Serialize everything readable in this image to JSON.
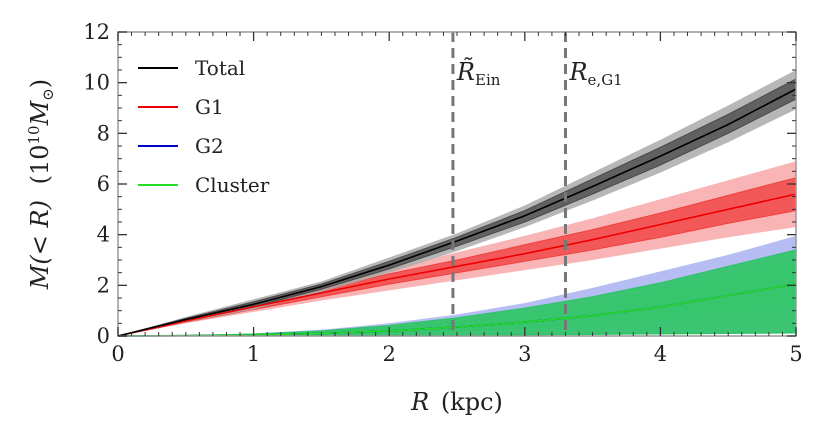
{
  "chart_data": {
    "type": "line",
    "title": "",
    "xlabel": {
      "symbol": "R",
      "unit": "(kpc)"
    },
    "ylabel": {
      "main": "M(< R)",
      "unit": "(10",
      "exp": "10",
      "tail": "M",
      "sub": "⊙",
      "close": ")"
    },
    "xlim": [
      0,
      5
    ],
    "ylim": [
      0,
      12
    ],
    "xticks": [
      0,
      1,
      2,
      3,
      4,
      5
    ],
    "yticks": [
      0,
      2,
      4,
      6,
      8,
      10,
      12
    ],
    "x": [
      0,
      0.5,
      1,
      1.5,
      2,
      2.5,
      3,
      3.5,
      4,
      4.5,
      5
    ],
    "series": [
      {
        "name": "Total",
        "color": "#000000",
        "median": [
          0,
          0.65,
          1.25,
          1.95,
          2.8,
          3.75,
          4.75,
          5.9,
          7.1,
          8.35,
          9.75
        ],
        "band68": [
          [
            0,
            0.6,
            1.15,
            1.85,
            2.65,
            3.55,
            4.5,
            5.6,
            6.75,
            8.0,
            9.35
          ],
          [
            0,
            0.7,
            1.35,
            2.05,
            2.95,
            3.9,
            4.95,
            6.2,
            7.45,
            8.75,
            10.15
          ]
        ],
        "band95": [
          [
            0,
            0.55,
            1.05,
            1.75,
            2.5,
            3.35,
            4.3,
            5.35,
            6.45,
            7.65,
            8.95
          ],
          [
            0,
            0.75,
            1.45,
            2.15,
            3.1,
            4.05,
            5.15,
            6.45,
            7.75,
            9.1,
            10.5
          ]
        ],
        "fill68": "#444444",
        "fill95": "#aaaaaa"
      },
      {
        "name": "G1",
        "color": "#ee0000",
        "median": [
          0,
          0.6,
          1.15,
          1.7,
          2.25,
          2.75,
          3.25,
          3.8,
          4.4,
          5.0,
          5.6
        ],
        "band68": [
          [
            0,
            0.55,
            1.05,
            1.55,
            2.05,
            2.5,
            2.95,
            3.4,
            3.9,
            4.45,
            4.95
          ],
          [
            0,
            0.65,
            1.25,
            1.85,
            2.45,
            3.0,
            3.6,
            4.2,
            4.85,
            5.55,
            6.25
          ]
        ],
        "band95": [
          [
            0,
            0.5,
            0.95,
            1.4,
            1.8,
            2.2,
            2.6,
            3.0,
            3.45,
            3.9,
            4.3
          ],
          [
            0,
            0.7,
            1.35,
            2.0,
            2.65,
            3.3,
            3.95,
            4.65,
            5.4,
            6.15,
            6.9
          ]
        ],
        "fill68": "#f03a3a",
        "fill95": "#f8a8a8"
      },
      {
        "name": "G2",
        "color": "#0000cc",
        "median": [
          0,
          0.01,
          0.04,
          0.1,
          0.2,
          0.35,
          0.55,
          0.8,
          1.15,
          1.6,
          2.05
        ],
        "band68": [
          [
            0,
            0.01,
            0.02,
            0.06,
            0.12,
            0.2,
            0.32,
            0.48,
            0.68,
            0.92,
            1.2
          ],
          [
            0,
            0.02,
            0.07,
            0.16,
            0.32,
            0.55,
            0.88,
            1.3,
            1.85,
            2.4,
            3.0
          ]
        ],
        "band95": [
          [
            0,
            0.0,
            0.0,
            0.01,
            0.02,
            0.03,
            0.04,
            0.06,
            0.08,
            0.1,
            0.12
          ],
          [
            0,
            0.03,
            0.1,
            0.25,
            0.5,
            0.85,
            1.3,
            1.9,
            2.55,
            3.2,
            3.95
          ]
        ],
        "fill68": "#1fcc55",
        "fill95": "#a8b2f0"
      },
      {
        "name": "Cluster",
        "color": "#22dd22",
        "median": [
          0,
          0.01,
          0.04,
          0.1,
          0.2,
          0.35,
          0.55,
          0.8,
          1.15,
          1.6,
          2.05
        ],
        "band68": [
          [
            0,
            0.0,
            0.0,
            0.01,
            0.02,
            0.03,
            0.04,
            0.06,
            0.08,
            0.1,
            0.12
          ],
          [
            0,
            0.02,
            0.08,
            0.2,
            0.42,
            0.72,
            1.1,
            1.55,
            2.1,
            2.75,
            3.4
          ]
        ],
        "band95": [
          [
            0,
            0.0,
            0.0,
            0.01,
            0.02,
            0.03,
            0.04,
            0.06,
            0.08,
            0.1,
            0.12
          ],
          [
            0,
            0.02,
            0.08,
            0.2,
            0.42,
            0.72,
            1.1,
            1.55,
            2.1,
            2.75,
            3.4
          ]
        ],
        "fill68": "#22c45a",
        "fill95": "#80c4b0"
      }
    ],
    "legend": {
      "location": "upper-left",
      "entries": [
        "Total",
        "G1",
        "G2",
        "Cluster"
      ]
    },
    "vlines": [
      {
        "x": 2.47,
        "label_main": "R̃",
        "label_sub": "Ein"
      },
      {
        "x": 3.3,
        "label_main": "R",
        "label_sub": "e,G1"
      }
    ],
    "vline_color": "#777777"
  }
}
